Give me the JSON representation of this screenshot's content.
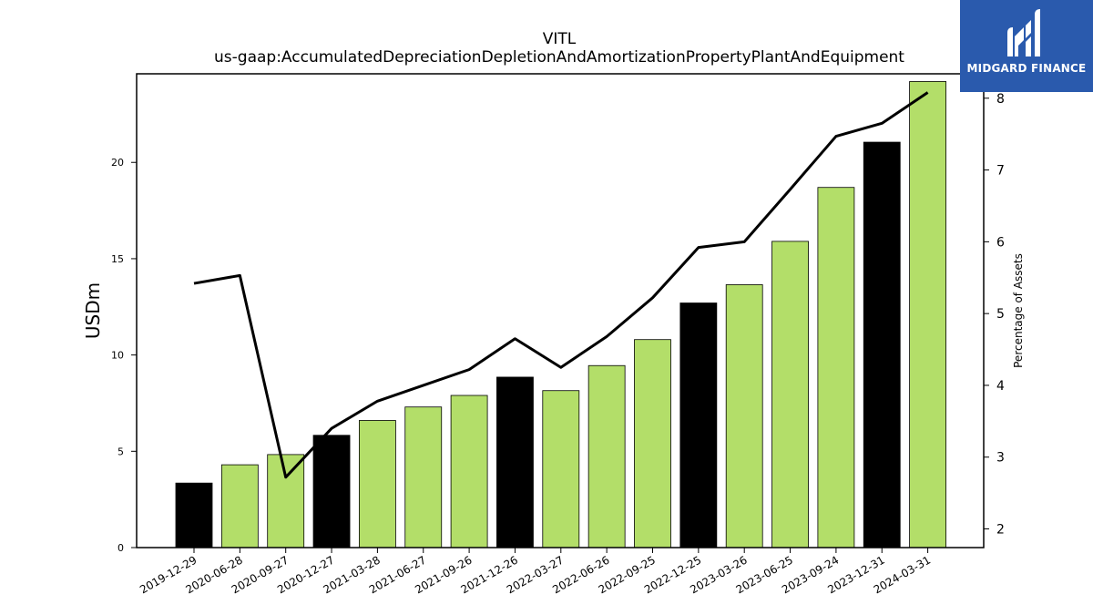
{
  "logo": {
    "text": "MIDGARD FINANCE",
    "bg_color": "#2a5aad"
  },
  "chart_data": {
    "type": "bar",
    "title": "VITL",
    "subtitle": "us-gaap:AccumulatedDepreciationDepletionAndAmortizationPropertyPlantAndEquipment",
    "ylabel": "USDm",
    "y2label": "Percentage of Assets",
    "ylim": [
      0,
      24.6
    ],
    "y2lim": [
      1.74,
      8.34
    ],
    "yticks": [
      0,
      5,
      10,
      15,
      20
    ],
    "y2ticks": [
      2,
      3,
      4,
      5,
      6,
      7,
      8
    ],
    "categories": [
      "2019-12-29",
      "2020-06-28",
      "2020-09-27",
      "2020-12-27",
      "2021-03-28",
      "2021-06-27",
      "2021-09-26",
      "2021-12-26",
      "2022-03-27",
      "2022-06-26",
      "2022-09-25",
      "2022-12-25",
      "2023-03-26",
      "2023-06-25",
      "2023-09-24",
      "2023-12-31",
      "2024-03-31"
    ],
    "series": [
      {
        "values": [
          3.35,
          4.3,
          4.83,
          5.83,
          6.6,
          7.3,
          7.9,
          8.85,
          8.15,
          9.45,
          10.8,
          12.7,
          13.65,
          15.9,
          18.7,
          21.05,
          24.2
        ],
        "colors": [
          "#000000",
          "#b3de69",
          "#b3de69",
          "#000000",
          "#b3de69",
          "#b3de69",
          "#b3de69",
          "#000000",
          "#b3de69",
          "#b3de69",
          "#b3de69",
          "#000000",
          "#b3de69",
          "#b3de69",
          "#b3de69",
          "#000000",
          "#b3de69"
        ]
      },
      {
        "axis": "right",
        "type": "line",
        "color": "#000000",
        "values": [
          5.42,
          5.53,
          2.72,
          3.4,
          3.78,
          4.0,
          4.22,
          4.65,
          4.25,
          4.68,
          5.22,
          5.92,
          6.0,
          6.73,
          7.47,
          7.65,
          8.08
        ]
      }
    ],
    "grid": false
  }
}
